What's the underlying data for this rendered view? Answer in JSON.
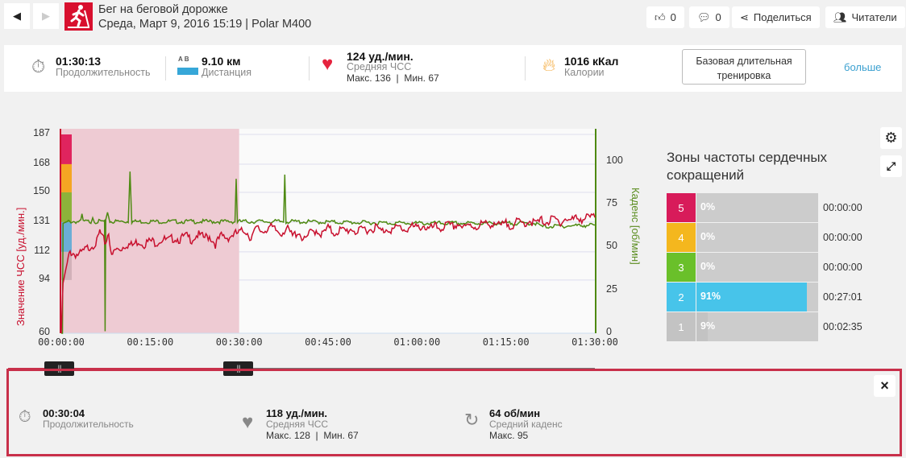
{
  "header": {
    "title": "Бег на беговой дорожке",
    "subtitle": "Среда, Март 9, 2016 15:19 | Polar M400",
    "likes": "0",
    "comments": "0",
    "share": "Поделиться",
    "followers": "Читатели"
  },
  "summary": {
    "duration": {
      "value": "01:30:13",
      "label": "Продолжительность"
    },
    "distance": {
      "value": "9.10 км",
      "label": "Дистанция",
      "ab": "A   B"
    },
    "hr": {
      "value": "124 уд./мин.",
      "label": "Средняя ЧСС",
      "minmax": "Макс. 136  |  Мин. 67"
    },
    "calories": {
      "value": "1016 кКал",
      "label": "Калории"
    },
    "training_type": "Базовая длительная тренировка",
    "more": "больше"
  },
  "chart_data": {
    "type": "line",
    "ylabel": "Значение ЧСС [уд./мин.]",
    "y2label": "Каденс [об/мин]",
    "yticks": [
      "187",
      "168",
      "150",
      "131",
      "112",
      "94",
      "60"
    ],
    "y2ticks": [
      "100",
      "75",
      "50",
      "25",
      "0"
    ],
    "xticks": [
      "00:00:00",
      "00:15:00",
      "00:30:00",
      "00:45:00",
      "01:00:00",
      "01:15:00",
      "01:30:00"
    ],
    "ylim": [
      60,
      190.6
    ],
    "y2lim": [
      0,
      119
    ],
    "xlim_min": [
      0,
      90
    ],
    "selection_min": [
      0,
      30
    ],
    "colors": {
      "hr": "#c8102e",
      "cadence": "#4e8a12",
      "selection": "#eecbd3"
    },
    "series": [
      {
        "name": "ЧСС",
        "points": [
          [
            0,
            60
          ],
          [
            0.3,
            92
          ],
          [
            1,
            105
          ],
          [
            1.5,
            112
          ],
          [
            2,
            111
          ],
          [
            3,
            110
          ],
          [
            4,
            113
          ],
          [
            5,
            116
          ],
          [
            6,
            118
          ],
          [
            6.5,
            125
          ],
          [
            7,
            120
          ],
          [
            7.5,
            118
          ],
          [
            8,
            125
          ],
          [
            8.5,
            108
          ],
          [
            9,
            113
          ],
          [
            10,
            114
          ],
          [
            11,
            117
          ],
          [
            12,
            116
          ],
          [
            13,
            119
          ],
          [
            14,
            117
          ],
          [
            15,
            119
          ],
          [
            16,
            118
          ],
          [
            17,
            120
          ],
          [
            18,
            119
          ],
          [
            19,
            121
          ],
          [
            20,
            120
          ],
          [
            21,
            122
          ],
          [
            22,
            120
          ],
          [
            23,
            123
          ],
          [
            24,
            121
          ],
          [
            25,
            122
          ],
          [
            26,
            117
          ],
          [
            27,
            122
          ],
          [
            28,
            121
          ],
          [
            29,
            123
          ],
          [
            30,
            124
          ],
          [
            31,
            126
          ],
          [
            32,
            121
          ],
          [
            33,
            127
          ],
          [
            34,
            125
          ],
          [
            35,
            128
          ],
          [
            36,
            126
          ],
          [
            37,
            124
          ],
          [
            38,
            127
          ],
          [
            39,
            122
          ],
          [
            40,
            125
          ],
          [
            41,
            119
          ],
          [
            42,
            124
          ],
          [
            43,
            126
          ],
          [
            44,
            123
          ],
          [
            45,
            127
          ],
          [
            46,
            124
          ],
          [
            47,
            126
          ],
          [
            48,
            125
          ],
          [
            49,
            127
          ],
          [
            50,
            124
          ],
          [
            51,
            127
          ],
          [
            52,
            126
          ],
          [
            53,
            128
          ],
          [
            54,
            125
          ],
          [
            55,
            127
          ],
          [
            56,
            126
          ],
          [
            57,
            128
          ],
          [
            58,
            126
          ],
          [
            59,
            128
          ],
          [
            60,
            127
          ],
          [
            61,
            129
          ],
          [
            62,
            126
          ],
          [
            63,
            128
          ],
          [
            64,
            127
          ],
          [
            65,
            129
          ],
          [
            66,
            128
          ],
          [
            67,
            130
          ],
          [
            68,
            127
          ],
          [
            69,
            129
          ],
          [
            70,
            128
          ],
          [
            71,
            130
          ],
          [
            72,
            129
          ],
          [
            73,
            131
          ],
          [
            74,
            128
          ],
          [
            75,
            130
          ],
          [
            76,
            129
          ],
          [
            77,
            131
          ],
          [
            78,
            130
          ],
          [
            79,
            132
          ],
          [
            80,
            130
          ],
          [
            81,
            132
          ],
          [
            82,
            131
          ],
          [
            83,
            133
          ],
          [
            84,
            131
          ],
          [
            85,
            133
          ],
          [
            86,
            132
          ],
          [
            87,
            134
          ],
          [
            88,
            133
          ],
          [
            89,
            134
          ],
          [
            90,
            134
          ]
        ]
      },
      {
        "name": "Каденс",
        "points": [
          [
            0,
            0
          ],
          [
            0.2,
            0
          ],
          [
            0.3,
            64
          ],
          [
            1,
            65
          ],
          [
            3.3,
            65
          ],
          [
            3.5,
            69
          ],
          [
            3.7,
            65
          ],
          [
            5,
            65
          ],
          [
            5.3,
            68
          ],
          [
            5.6,
            65
          ],
          [
            7.3,
            65
          ],
          [
            7.4,
            0
          ],
          [
            7.5,
            65
          ],
          [
            7.8,
            71
          ],
          [
            8.2,
            65
          ],
          [
            11.3,
            65
          ],
          [
            11.6,
            95
          ],
          [
            11.9,
            65
          ],
          [
            29.3,
            65
          ],
          [
            29.5,
            90
          ],
          [
            29.7,
            65
          ],
          [
            37.5,
            65
          ],
          [
            37.7,
            93
          ],
          [
            37.9,
            65
          ],
          [
            60,
            64
          ],
          [
            80,
            64
          ],
          [
            81,
            62
          ],
          [
            90,
            63
          ]
        ]
      }
    ]
  },
  "zones": {
    "title": "Зоны частоты сердечных сокращений",
    "items": [
      {
        "n": "5",
        "pct": "0%",
        "fill": 0,
        "time": "00:00:00",
        "color": "#d81b5a"
      },
      {
        "n": "4",
        "pct": "0%",
        "fill": 0,
        "time": "00:00:00",
        "color": "#f4b71e"
      },
      {
        "n": "3",
        "pct": "0%",
        "fill": 0,
        "time": "00:00:00",
        "color": "#6ac02a"
      },
      {
        "n": "2",
        "pct": "91%",
        "fill": 91,
        "time": "00:27:01",
        "color": "#47c4ea"
      },
      {
        "n": "1",
        "pct": "9%",
        "fill": 9,
        "time": "00:02:35",
        "color": "#c3c3c3"
      }
    ]
  },
  "selection": {
    "duration": {
      "value": "00:30:04",
      "label": "Продолжительность"
    },
    "hr": {
      "value": "118 уд./мин.",
      "label": "Средняя ЧСС",
      "minmax": "Макс. 128  |  Мин. 67"
    },
    "cadence": {
      "value": "64 об/мин",
      "label": "Средний каденс",
      "max": "Макс. 95"
    },
    "close": "×"
  }
}
